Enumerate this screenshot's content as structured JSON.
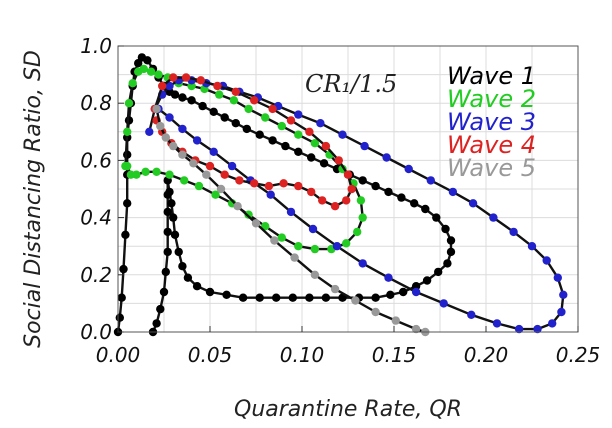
{
  "chart_data": {
    "type": "line",
    "annotation": "CR₁/1.5",
    "xlabel": "Quarantine Rate, QR",
    "ylabel": "Social Distancing Ratio, SD",
    "xlim": [
      0,
      0.25
    ],
    "ylim": [
      0,
      1.0
    ],
    "xticks": [
      "0.00",
      "0.05",
      "0.10",
      "0.15",
      "0.20",
      "0.25"
    ],
    "yticks": [
      "0.0",
      "0.2",
      "0.4",
      "0.6",
      "0.8",
      "1.0"
    ],
    "grid": true,
    "legend_position": "top-right",
    "series": [
      {
        "name": "Wave 1",
        "color": "#000000",
        "points": [
          [
            0.0,
            0.0
          ],
          [
            0.001,
            0.05
          ],
          [
            0.002,
            0.12
          ],
          [
            0.003,
            0.22
          ],
          [
            0.004,
            0.34
          ],
          [
            0.005,
            0.45
          ],
          [
            0.005,
            0.55
          ],
          [
            0.005,
            0.62
          ],
          [
            0.005,
            0.68
          ],
          [
            0.006,
            0.74
          ],
          [
            0.007,
            0.8
          ],
          [
            0.008,
            0.86
          ],
          [
            0.009,
            0.91
          ],
          [
            0.011,
            0.94
          ],
          [
            0.013,
            0.96
          ],
          [
            0.016,
            0.95
          ],
          [
            0.019,
            0.92
          ],
          [
            0.022,
            0.89
          ],
          [
            0.025,
            0.86
          ],
          [
            0.028,
            0.84
          ],
          [
            0.031,
            0.83
          ],
          [
            0.035,
            0.82
          ],
          [
            0.04,
            0.81
          ],
          [
            0.046,
            0.79
          ],
          [
            0.052,
            0.77
          ],
          [
            0.058,
            0.75
          ],
          [
            0.064,
            0.73
          ],
          [
            0.07,
            0.71
          ],
          [
            0.077,
            0.69
          ],
          [
            0.084,
            0.67
          ],
          [
            0.091,
            0.65
          ],
          [
            0.098,
            0.63
          ],
          [
            0.105,
            0.61
          ],
          [
            0.112,
            0.59
          ],
          [
            0.119,
            0.57
          ],
          [
            0.126,
            0.55
          ],
          [
            0.133,
            0.53
          ],
          [
            0.14,
            0.51
          ],
          [
            0.147,
            0.49
          ],
          [
            0.154,
            0.47
          ],
          [
            0.161,
            0.45
          ],
          [
            0.167,
            0.43
          ],
          [
            0.173,
            0.4
          ],
          [
            0.178,
            0.36
          ],
          [
            0.181,
            0.32
          ],
          [
            0.181,
            0.28
          ],
          [
            0.179,
            0.24
          ],
          [
            0.174,
            0.21
          ],
          [
            0.168,
            0.18
          ],
          [
            0.162,
            0.16
          ],
          [
            0.155,
            0.14
          ],
          [
            0.148,
            0.13
          ],
          [
            0.14,
            0.12
          ],
          [
            0.131,
            0.12
          ],
          [
            0.122,
            0.12
          ],
          [
            0.113,
            0.12
          ],
          [
            0.104,
            0.12
          ],
          [
            0.095,
            0.12
          ],
          [
            0.086,
            0.12
          ],
          [
            0.077,
            0.12
          ],
          [
            0.068,
            0.12
          ],
          [
            0.059,
            0.13
          ],
          [
            0.05,
            0.14
          ],
          [
            0.043,
            0.16
          ],
          [
            0.038,
            0.19
          ],
          [
            0.035,
            0.23
          ],
          [
            0.033,
            0.28
          ],
          [
            0.031,
            0.34
          ],
          [
            0.03,
            0.4
          ],
          [
            0.029,
            0.45
          ],
          [
            0.028,
            0.49
          ],
          [
            0.027,
            0.53
          ],
          [
            0.027,
            0.48
          ],
          [
            0.027,
            0.42
          ],
          [
            0.027,
            0.35
          ],
          [
            0.027,
            0.28
          ],
          [
            0.026,
            0.21
          ],
          [
            0.025,
            0.14
          ],
          [
            0.023,
            0.08
          ],
          [
            0.021,
            0.03
          ],
          [
            0.019,
            0.0
          ]
        ]
      },
      {
        "name": "Wave 2",
        "color": "#22cc22",
        "points": [
          [
            0.004,
            0.58
          ],
          [
            0.005,
            0.7
          ],
          [
            0.006,
            0.8
          ],
          [
            0.008,
            0.87
          ],
          [
            0.011,
            0.91
          ],
          [
            0.014,
            0.92
          ],
          [
            0.018,
            0.91
          ],
          [
            0.022,
            0.9
          ],
          [
            0.027,
            0.89
          ],
          [
            0.033,
            0.87
          ],
          [
            0.04,
            0.86
          ],
          [
            0.047,
            0.85
          ],
          [
            0.055,
            0.83
          ],
          [
            0.063,
            0.81
          ],
          [
            0.071,
            0.78
          ],
          [
            0.08,
            0.75
          ],
          [
            0.089,
            0.72
          ],
          [
            0.098,
            0.69
          ],
          [
            0.107,
            0.66
          ],
          [
            0.115,
            0.62
          ],
          [
            0.122,
            0.57
          ],
          [
            0.128,
            0.52
          ],
          [
            0.132,
            0.46
          ],
          [
            0.133,
            0.4
          ],
          [
            0.13,
            0.35
          ],
          [
            0.124,
            0.31
          ],
          [
            0.116,
            0.29
          ],
          [
            0.107,
            0.29
          ],
          [
            0.098,
            0.3
          ],
          [
            0.089,
            0.33
          ],
          [
            0.08,
            0.37
          ],
          [
            0.071,
            0.41
          ],
          [
            0.062,
            0.45
          ],
          [
            0.053,
            0.48
          ],
          [
            0.044,
            0.51
          ],
          [
            0.036,
            0.53
          ],
          [
            0.028,
            0.55
          ],
          [
            0.021,
            0.56
          ],
          [
            0.015,
            0.56
          ],
          [
            0.01,
            0.55
          ],
          [
            0.007,
            0.55
          ],
          [
            0.005,
            0.58
          ]
        ]
      },
      {
        "name": "Wave 3",
        "color": "#2222cc",
        "points": [
          [
            0.017,
            0.7
          ],
          [
            0.02,
            0.78
          ],
          [
            0.024,
            0.83
          ],
          [
            0.028,
            0.86
          ],
          [
            0.033,
            0.88
          ],
          [
            0.04,
            0.88
          ],
          [
            0.048,
            0.87
          ],
          [
            0.057,
            0.86
          ],
          [
            0.066,
            0.84
          ],
          [
            0.076,
            0.82
          ],
          [
            0.087,
            0.79
          ],
          [
            0.098,
            0.76
          ],
          [
            0.11,
            0.73
          ],
          [
            0.122,
            0.69
          ],
          [
            0.134,
            0.65
          ],
          [
            0.146,
            0.61
          ],
          [
            0.158,
            0.57
          ],
          [
            0.17,
            0.53
          ],
          [
            0.182,
            0.49
          ],
          [
            0.193,
            0.45
          ],
          [
            0.204,
            0.4
          ],
          [
            0.215,
            0.35
          ],
          [
            0.225,
            0.3
          ],
          [
            0.233,
            0.25
          ],
          [
            0.239,
            0.19
          ],
          [
            0.242,
            0.13
          ],
          [
            0.241,
            0.07
          ],
          [
            0.236,
            0.03
          ],
          [
            0.228,
            0.01
          ],
          [
            0.218,
            0.01
          ],
          [
            0.206,
            0.03
          ],
          [
            0.192,
            0.06
          ],
          [
            0.177,
            0.1
          ],
          [
            0.162,
            0.14
          ],
          [
            0.147,
            0.19
          ],
          [
            0.133,
            0.24
          ],
          [
            0.119,
            0.3
          ],
          [
            0.106,
            0.36
          ],
          [
            0.094,
            0.42
          ],
          [
            0.083,
            0.48
          ],
          [
            0.072,
            0.53
          ],
          [
            0.062,
            0.58
          ],
          [
            0.052,
            0.63
          ],
          [
            0.043,
            0.67
          ],
          [
            0.035,
            0.71
          ],
          [
            0.028,
            0.75
          ],
          [
            0.022,
            0.78
          ]
        ]
      },
      {
        "name": "Wave 4",
        "color": "#dd2222",
        "points": [
          [
            0.02,
            0.78
          ],
          [
            0.024,
            0.86
          ],
          [
            0.03,
            0.89
          ],
          [
            0.037,
            0.89
          ],
          [
            0.045,
            0.88
          ],
          [
            0.054,
            0.86
          ],
          [
            0.064,
            0.84
          ],
          [
            0.074,
            0.81
          ],
          [
            0.084,
            0.78
          ],
          [
            0.094,
            0.74
          ],
          [
            0.104,
            0.7
          ],
          [
            0.113,
            0.65
          ],
          [
            0.12,
            0.6
          ],
          [
            0.125,
            0.55
          ],
          [
            0.127,
            0.5
          ],
          [
            0.124,
            0.46
          ],
          [
            0.118,
            0.44
          ],
          [
            0.111,
            0.46
          ],
          [
            0.105,
            0.49
          ],
          [
            0.098,
            0.51
          ],
          [
            0.09,
            0.52
          ],
          [
            0.082,
            0.51
          ],
          [
            0.074,
            0.52
          ],
          [
            0.066,
            0.53
          ],
          [
            0.058,
            0.55
          ],
          [
            0.05,
            0.58
          ],
          [
            0.042,
            0.6
          ],
          [
            0.035,
            0.63
          ],
          [
            0.029,
            0.66
          ],
          [
            0.024,
            0.7
          ],
          [
            0.021,
            0.74
          ]
        ]
      },
      {
        "name": "Wave 5",
        "color": "#999999",
        "points": [
          [
            0.021,
            0.78
          ],
          [
            0.023,
            0.72
          ],
          [
            0.026,
            0.68
          ],
          [
            0.03,
            0.65
          ],
          [
            0.035,
            0.62
          ],
          [
            0.041,
            0.59
          ],
          [
            0.048,
            0.55
          ],
          [
            0.056,
            0.5
          ],
          [
            0.065,
            0.44
          ],
          [
            0.075,
            0.38
          ],
          [
            0.085,
            0.32
          ],
          [
            0.096,
            0.26
          ],
          [
            0.107,
            0.2
          ],
          [
            0.118,
            0.15
          ],
          [
            0.129,
            0.11
          ],
          [
            0.14,
            0.07
          ],
          [
            0.151,
            0.04
          ],
          [
            0.162,
            0.01
          ],
          [
            0.167,
            0.0
          ]
        ]
      }
    ]
  }
}
